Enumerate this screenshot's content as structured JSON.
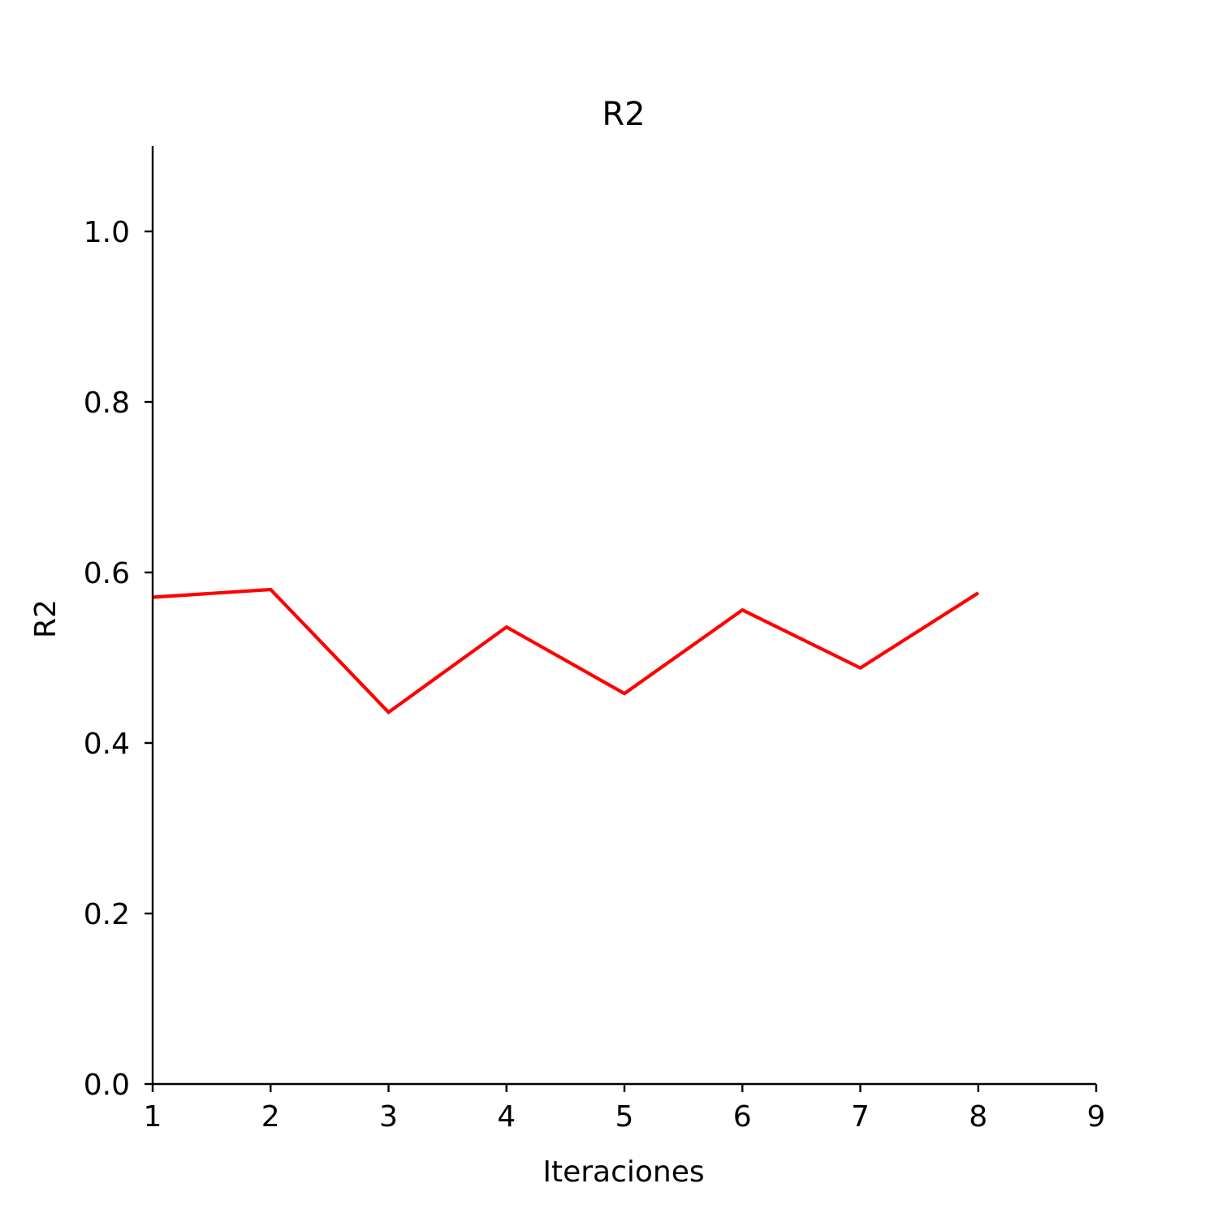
{
  "chart_data": {
    "type": "line",
    "title": "R2",
    "xlabel": "Iteraciones",
    "ylabel": "R2",
    "xlim": [
      1,
      9
    ],
    "ylim": [
      0,
      1.1
    ],
    "xticks": [
      1,
      2,
      3,
      4,
      5,
      6,
      7,
      8,
      9
    ],
    "xtick_labels": [
      "1",
      "2",
      "3",
      "4",
      "5",
      "6",
      "7",
      "8",
      "9"
    ],
    "yticks": [
      0.0,
      0.2,
      0.4,
      0.6,
      0.8,
      1.0
    ],
    "ytick_labels": [
      "0.0",
      "0.2",
      "0.4",
      "0.6",
      "0.8",
      "1.0"
    ],
    "grid": false,
    "series": [
      {
        "color": "#ff0000",
        "x": [
          1,
          2,
          3,
          4,
          5,
          6,
          7,
          8
        ],
        "y": [
          0.571,
          0.58,
          0.436,
          0.536,
          0.458,
          0.556,
          0.488,
          0.576
        ]
      }
    ]
  }
}
